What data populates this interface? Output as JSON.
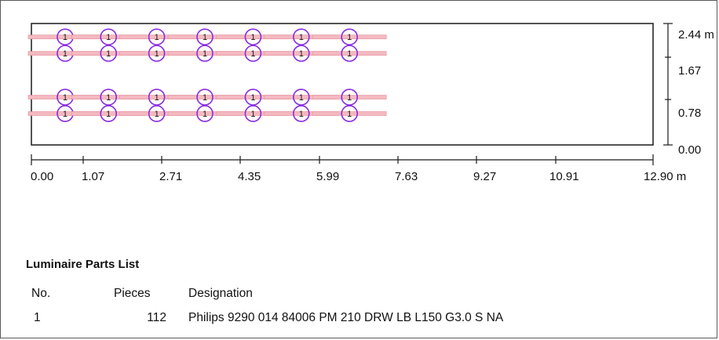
{
  "plan": {
    "x_ticks": [
      "0.00",
      "1.07",
      "2.71",
      "4.35",
      "5.99",
      "7.63",
      "9.27",
      "10.91",
      "12.90 m"
    ],
    "y_ticks": [
      "2.44 m",
      "1.67",
      "0.78",
      "0.00"
    ],
    "luminaire_marker_label": "1",
    "luminaire_rows_y": [
      2.17,
      1.84,
      0.96,
      0.63
    ],
    "luminaire_cols_x": [
      0.7,
      1.6,
      2.6,
      3.6,
      4.6,
      5.6,
      6.6
    ],
    "colors": {
      "room_outline": "#1a1a1a",
      "luminaire_body": "#f4b9c0",
      "luminaire_marker": "#8a2be2",
      "axis": "#1a1a1a"
    }
  },
  "parts_list": {
    "title": "Luminaire Parts List",
    "headers": {
      "no": "No.",
      "pieces": "Pieces",
      "designation": "Designation"
    },
    "rows": [
      {
        "no": "1",
        "pieces": "112",
        "designation": "Philips 9290 014 84006 PM 210 DRW LB L150 G3.0 S NA"
      }
    ]
  }
}
